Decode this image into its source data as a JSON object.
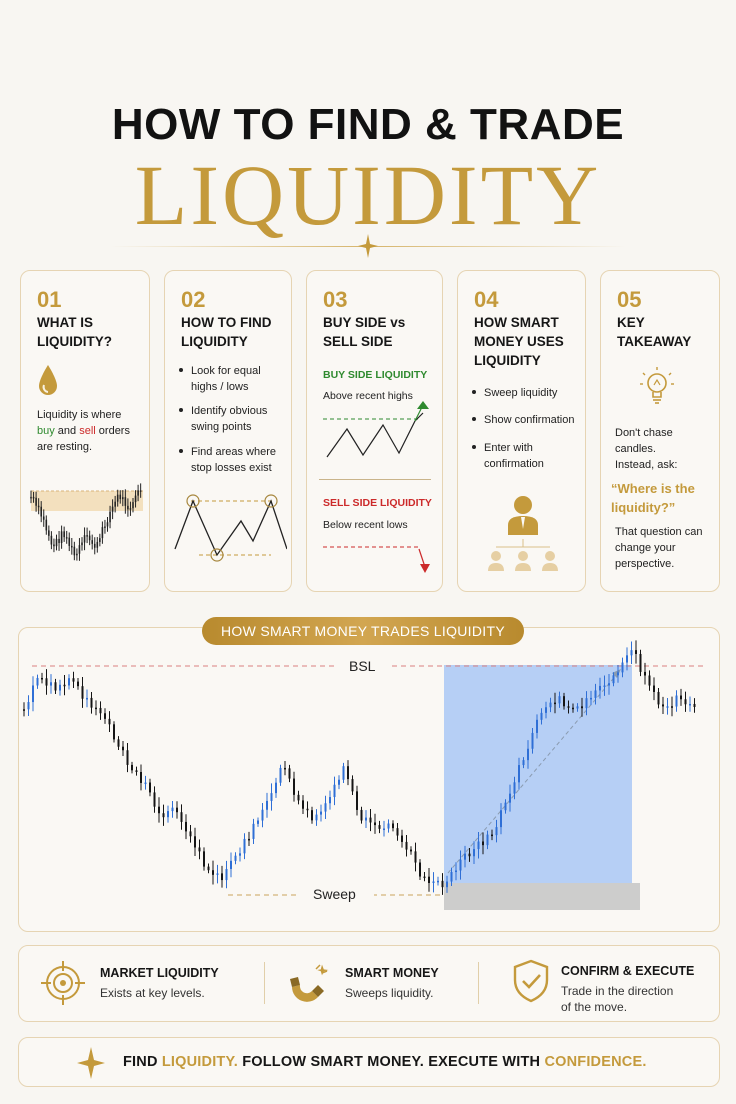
{
  "header": {
    "title_line1": "HOW TO FIND & TRADE",
    "title_line2": "LIQUIDITY"
  },
  "cards": [
    {
      "num": "01",
      "title_l1": "WHAT IS",
      "title_l2": "LIQUIDITY?",
      "desc_l1": "Liquidity is where",
      "desc_buy": "buy",
      "desc_and": " and ",
      "desc_sell": "sell",
      "desc_orders": " orders",
      "desc_l3": "are resting."
    },
    {
      "num": "02",
      "title_l1": "HOW TO FIND",
      "title_l2": "LIQUIDITY",
      "bullets": [
        [
          "Look for equal",
          "highs / lows"
        ],
        [
          "Identify obvious",
          "swing points"
        ],
        [
          "Find areas where",
          "stop losses exist"
        ]
      ]
    },
    {
      "num": "03",
      "title_l1": "BUY SIDE vs",
      "title_l2": "SELL SIDE",
      "buy_label": "BUY SIDE LIQUIDITY",
      "buy_sub": "Above recent highs",
      "sell_label": "SELL SIDE LIQUIDITY",
      "sell_sub": "Below recent lows"
    },
    {
      "num": "04",
      "title_l1": "HOW SMART",
      "title_l2": "MONEY USES",
      "title_l3": "LIQUIDITY",
      "bullets": [
        [
          "Sweep liquidity"
        ],
        [
          "Show confirmation"
        ],
        [
          "Enter with",
          "confirmation"
        ]
      ]
    },
    {
      "num": "05",
      "title_l1": "KEY",
      "title_l2": "TAKEAWAY",
      "p1_l1": "Don't chase",
      "p1_l2": "candles.",
      "p1_l3": "Instead, ask:",
      "quote_l1": "“Where is the",
      "quote_l2": "liquidity?”",
      "p2_l1": "That question can",
      "p2_l2": "change your",
      "p2_l3": "perspective."
    }
  ],
  "chart_section": {
    "banner": "HOW SMART MONEY TRADES LIQUIDITY",
    "bsl_label": "BSL",
    "sweep_label": "Sweep"
  },
  "features": [
    {
      "icon": "target-icon",
      "title": "MARKET LIQUIDITY",
      "sub_l1": "Exists at key levels.",
      "sub_l2": ""
    },
    {
      "icon": "magnet-icon",
      "title": "SMART MONEY",
      "sub_l1": "Sweeps liquidity.",
      "sub_l2": ""
    },
    {
      "icon": "shield-check-icon",
      "title": "CONFIRM & EXECUTE",
      "sub_l1": "Trade in the direction",
      "sub_l2": "of the move."
    }
  ],
  "footer": {
    "find": "FIND ",
    "liquidity": "LIQUIDITY.",
    "middle": " FOLLOW SMART MONEY. EXECUTE WITH ",
    "confidence": "CONFIDENCE."
  },
  "colors": {
    "gold": "#c49a3c",
    "buy_green": "#2f8a2f",
    "sell_red": "#cc2a2a",
    "blue_zone": "#a9c8f5",
    "candle_blue": "#2f6fd6"
  }
}
